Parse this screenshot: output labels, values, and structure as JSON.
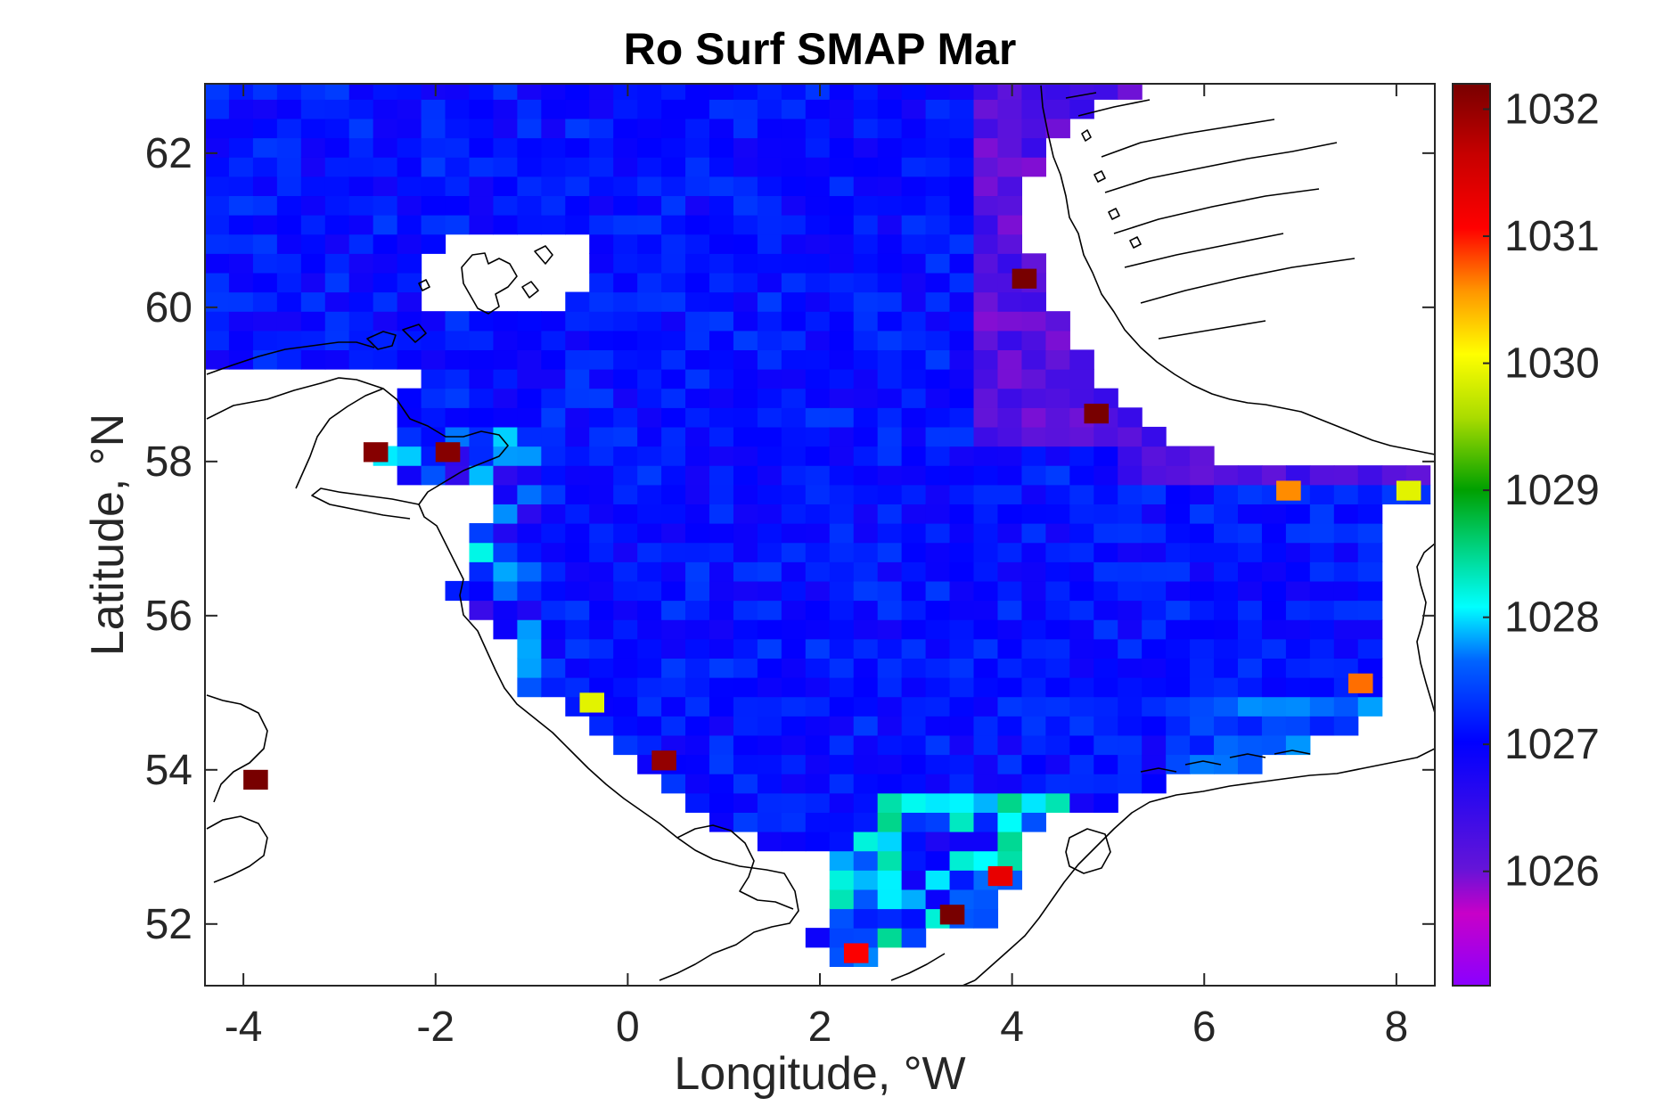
{
  "chart_data": {
    "type": "heatmap",
    "title": "Ro Surf SMAP Mar",
    "xlabel": "Longitude, °W",
    "ylabel": "Latitude, °N",
    "xlim": [
      -4.4,
      8.4
    ],
    "ylim": [
      51.2,
      62.9
    ],
    "xticks": [
      -4,
      -2,
      0,
      2,
      4,
      6,
      8
    ],
    "yticks": [
      52,
      54,
      56,
      58,
      60,
      62
    ],
    "grid_resolution_deg": 0.25,
    "colorbar": {
      "colormap": "jet-like (purple to dark red)",
      "range": [
        1025.1,
        1032.2
      ],
      "ticks": [
        1026,
        1027,
        1028,
        1029,
        1030,
        1031,
        1032
      ]
    },
    "field": "sea surface density (SMAP), March",
    "highlights": [
      {
        "lon": -3.9,
        "lat": 53.9,
        "value": 1032.2
      },
      {
        "lon": 4.1,
        "lat": 60.4,
        "value": 1032.2
      },
      {
        "lon": 4.9,
        "lat": 58.6,
        "value": 1032.2
      },
      {
        "lon": 3.4,
        "lat": 52.1,
        "value": 1032.2
      },
      {
        "lon": 0.4,
        "lat": 54.1,
        "value": 1032.0
      },
      {
        "lon": -2.6,
        "lat": 58.1,
        "value": 1032.1
      },
      {
        "lon": -1.9,
        "lat": 58.1,
        "value": 1032.1
      },
      {
        "lon": 3.9,
        "lat": 52.6,
        "value": 1031.3
      },
      {
        "lon": 2.4,
        "lat": 51.6,
        "value": 1031.1
      },
      {
        "lon": 6.9,
        "lat": 57.6,
        "value": 1030.6
      },
      {
        "lon": 7.6,
        "lat": 55.1,
        "value": 1030.7
      },
      {
        "lon": 8.1,
        "lat": 57.6,
        "value": 1029.9
      },
      {
        "lon": -0.4,
        "lat": 54.9,
        "value": 1029.9
      }
    ]
  },
  "figure": {
    "title": "Ro Surf SMAP Mar",
    "xlabel": "Longitude, °W",
    "ylabel": "Latitude, °N",
    "xtick_labels": [
      "-4",
      "-2",
      "0",
      "2",
      "4",
      "6",
      "8"
    ],
    "ytick_labels": [
      "52",
      "54",
      "56",
      "58",
      "60",
      "62"
    ],
    "colorbar_tick_labels": [
      "1026",
      "1027",
      "1028",
      "1029",
      "1030",
      "1031",
      "1032"
    ]
  },
  "colors": {
    "land": "#ffffff",
    "coastline": "#000000",
    "axes": "#262626"
  }
}
